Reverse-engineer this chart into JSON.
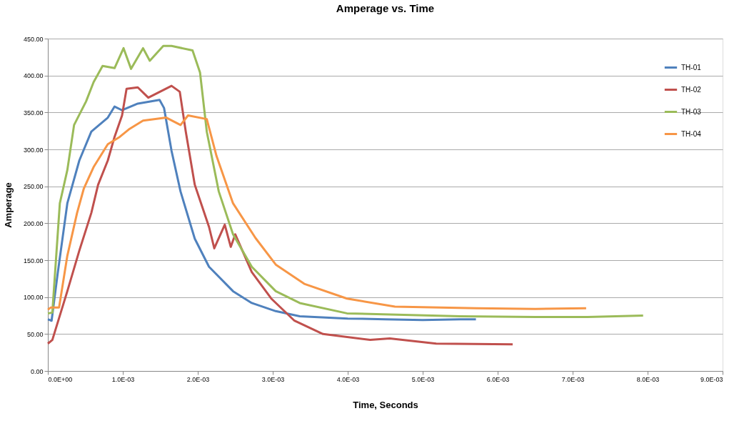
{
  "chart_data": {
    "type": "line",
    "title": "Amperage vs. Time",
    "xlabel": "Time, Seconds",
    "ylabel": "Amperage",
    "xlim": [
      0,
      0.009
    ],
    "ylim": [
      0,
      450
    ],
    "xticks": [
      {
        "value": 0,
        "label": "0.0E+00"
      },
      {
        "value": 0.001,
        "label": "1.0E-03"
      },
      {
        "value": 0.002,
        "label": "2.0E-03"
      },
      {
        "value": 0.003,
        "label": "3.0E-03"
      },
      {
        "value": 0.004,
        "label": "4.0E-03"
      },
      {
        "value": 0.005,
        "label": "5.0E-03"
      },
      {
        "value": 0.006,
        "label": "6.0E-03"
      },
      {
        "value": 0.007,
        "label": "7.0E-03"
      },
      {
        "value": 0.008,
        "label": "8.0E-03"
      },
      {
        "value": 0.009,
        "label": "9.0E-03"
      }
    ],
    "yticks": [
      {
        "value": 0,
        "label": "0.00"
      },
      {
        "value": 50,
        "label": "50.00"
      },
      {
        "value": 100,
        "label": "100.00"
      },
      {
        "value": 150,
        "label": "150.00"
      },
      {
        "value": 200,
        "label": "200.00"
      },
      {
        "value": 250,
        "label": "250.00"
      },
      {
        "value": 300,
        "label": "300.00"
      },
      {
        "value": 350,
        "label": "350.00"
      },
      {
        "value": 400,
        "label": "400.00"
      },
      {
        "value": 450,
        "label": "450.00"
      }
    ],
    "grid": "y",
    "legend": "top right",
    "marker": "none",
    "line_style": "solid",
    "series": [
      {
        "name": "TH-01",
        "color": "#4f81bd",
        "x": [
          0,
          5e-05,
          0.00013,
          0.00026,
          0.00042,
          0.00058,
          0.0008,
          0.00089,
          0.00099,
          0.0012,
          0.00149,
          0.00155,
          0.00165,
          0.00177,
          0.00196,
          0.00215,
          0.00247,
          0.00272,
          0.00304,
          0.00336,
          0.004,
          0.0045,
          0.005,
          0.0055,
          0.00571
        ],
        "values": [
          70,
          68,
          131,
          227,
          285,
          324,
          343,
          358,
          353,
          362,
          367,
          356,
          298,
          243,
          179,
          141,
          108,
          92,
          81,
          74,
          71,
          70,
          69,
          70,
          70
        ]
      },
      {
        "name": "TH-02",
        "color": "#c0504d",
        "x": [
          0,
          6e-05,
          0.00026,
          0.00042,
          0.00058,
          0.00067,
          0.0008,
          0.00089,
          0.00099,
          0.00105,
          0.0012,
          0.00134,
          0.00165,
          0.00176,
          0.00184,
          0.00196,
          0.00215,
          0.00222,
          0.00236,
          0.00244,
          0.0025,
          0.00272,
          0.00298,
          0.00329,
          0.00367,
          0.0043,
          0.00456,
          0.00518,
          0.0062
        ],
        "values": [
          37,
          42,
          108,
          163,
          214,
          252,
          285,
          317,
          346,
          382,
          384,
          370,
          386,
          378,
          324,
          252,
          195,
          166,
          198,
          168,
          185,
          134,
          98,
          68,
          50,
          42,
          44,
          37,
          36
        ]
      },
      {
        "name": "TH-03",
        "color": "#9bbb59",
        "x": [
          0,
          6e-05,
          0.00016,
          0.00026,
          0.00035,
          0.00051,
          0.00061,
          0.00073,
          0.00089,
          0.00101,
          0.00111,
          0.00127,
          0.00136,
          0.00154,
          0.00165,
          0.00193,
          0.00203,
          0.00212,
          0.00228,
          0.00247,
          0.00272,
          0.00304,
          0.00336,
          0.00399,
          0.00475,
          0.0055,
          0.0065,
          0.0072,
          0.00794
        ],
        "values": [
          78,
          79,
          227,
          272,
          333,
          365,
          391,
          413,
          410,
          437,
          409,
          437,
          420,
          440,
          440,
          434,
          404,
          324,
          243,
          185,
          141,
          108,
          92,
          78,
          76,
          74,
          73,
          73,
          75
        ]
      },
      {
        "name": "TH-04",
        "color": "#f79646",
        "x": [
          0,
          4e-05,
          0.00015,
          0.00026,
          0.00039,
          0.00048,
          0.00061,
          0.0008,
          0.00096,
          0.00108,
          0.00127,
          0.00158,
          0.00177,
          0.00187,
          0.00212,
          0.00225,
          0.00247,
          0.00277,
          0.00304,
          0.00342,
          0.00399,
          0.00463,
          0.00572,
          0.0065,
          0.00718
        ],
        "values": [
          83,
          86,
          86,
          156,
          214,
          247,
          276,
          307,
          317,
          327,
          339,
          343,
          333,
          346,
          341,
          291,
          227,
          180,
          144,
          118,
          98,
          87,
          85,
          84,
          85
        ]
      }
    ]
  }
}
